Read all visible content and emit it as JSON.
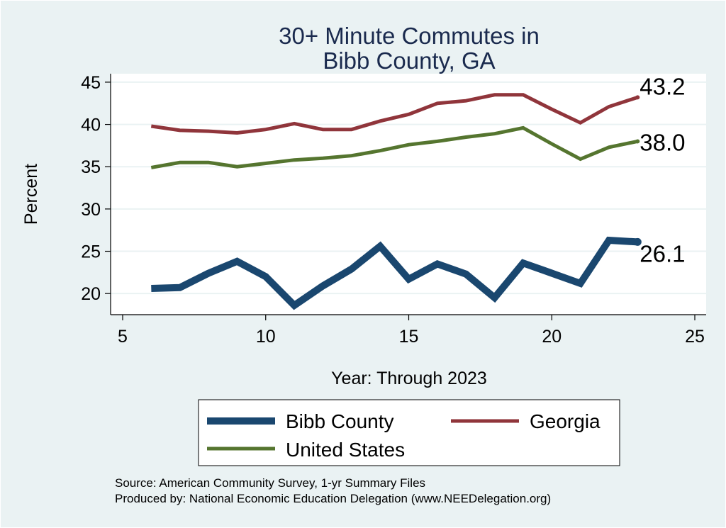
{
  "chart_data": {
    "type": "line",
    "title": [
      "30+ Minute Commutes in",
      "Bibb County, GA"
    ],
    "xlabel": "Year: Through 2023",
    "ylabel": "Percent",
    "xlim": [
      5,
      25
    ],
    "ylim": [
      17.5,
      46
    ],
    "xticks": [
      5,
      10,
      15,
      20,
      25
    ],
    "yticks": [
      20,
      25,
      30,
      35,
      40,
      45
    ],
    "grid": true,
    "series": [
      {
        "name": "Bibb County",
        "color": "#1a476f",
        "x": [
          6,
          7,
          8,
          9,
          10,
          11,
          12,
          13,
          14,
          15,
          16,
          17,
          18,
          19,
          20,
          21,
          22,
          23
        ],
        "values": [
          20.6,
          20.7,
          22.4,
          23.8,
          22.0,
          18.6,
          20.9,
          22.9,
          25.6,
          21.7,
          23.5,
          22.3,
          19.5,
          23.6,
          22.4,
          21.2,
          26.3,
          26.1
        ],
        "end_label": "26.1"
      },
      {
        "name": "Georgia",
        "color": "#90353b",
        "x": [
          6,
          7,
          8,
          9,
          10,
          11,
          12,
          13,
          14,
          15,
          16,
          17,
          18,
          19,
          20,
          21,
          22,
          23
        ],
        "values": [
          39.8,
          39.3,
          39.2,
          39.0,
          39.4,
          40.1,
          39.4,
          39.4,
          40.4,
          41.2,
          42.5,
          42.8,
          43.5,
          43.5,
          41.8,
          40.2,
          42.1,
          43.2
        ],
        "end_label": "43.2"
      },
      {
        "name": "United States",
        "color": "#55752f",
        "x": [
          6,
          7,
          8,
          9,
          10,
          11,
          12,
          13,
          14,
          15,
          16,
          17,
          18,
          19,
          20,
          21,
          22,
          23
        ],
        "values": [
          34.9,
          35.5,
          35.5,
          35.0,
          35.4,
          35.8,
          36.0,
          36.3,
          36.9,
          37.6,
          38.0,
          38.5,
          38.9,
          39.6,
          37.7,
          35.9,
          37.3,
          38.0
        ],
        "end_label": "38.0"
      }
    ],
    "legend": [
      {
        "label": "Bibb County",
        "color": "#1a476f"
      },
      {
        "label": "Georgia",
        "color": "#90353b"
      },
      {
        "label": "United States",
        "color": "#55752f"
      }
    ],
    "legend_position": "bottom"
  },
  "source_lines": [
    "Source: American Community Survey, 1-yr Summary Files",
    "Produced by: National Economic Education Delegation (www.NEEDelegation.org)"
  ]
}
